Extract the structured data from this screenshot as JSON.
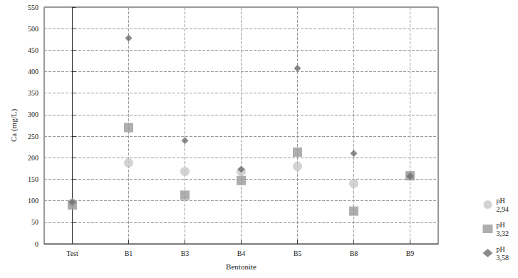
{
  "chart_data": {
    "type": "scatter",
    "x_label": "Bentonite",
    "y_label": "Ca (mg/L)",
    "categories": [
      "Test",
      "B1",
      "B3",
      "B4",
      "B5",
      "B8",
      "B9"
    ],
    "series": [
      {
        "name": "pH 2,94",
        "color": "#c8c8c8",
        "marker": "circle",
        "values": [
          95,
          188,
          168,
          168,
          180,
          140,
          158
        ]
      },
      {
        "name": "pH 3,32",
        "color": "#9a9a9a",
        "marker": "square",
        "values": [
          90,
          270,
          113,
          147,
          213,
          76,
          158
        ]
      },
      {
        "name": "pH 3,58",
        "color": "#6e6e6e",
        "marker": "diamond",
        "values": [
          97,
          478,
          240,
          173,
          408,
          210,
          157
        ]
      }
    ],
    "ylim": [
      0,
      550
    ],
    "yticks": [
      0,
      50,
      100,
      150,
      200,
      250,
      300,
      350,
      400,
      450,
      500,
      550
    ],
    "grid": true,
    "legend": "bottom-right"
  }
}
